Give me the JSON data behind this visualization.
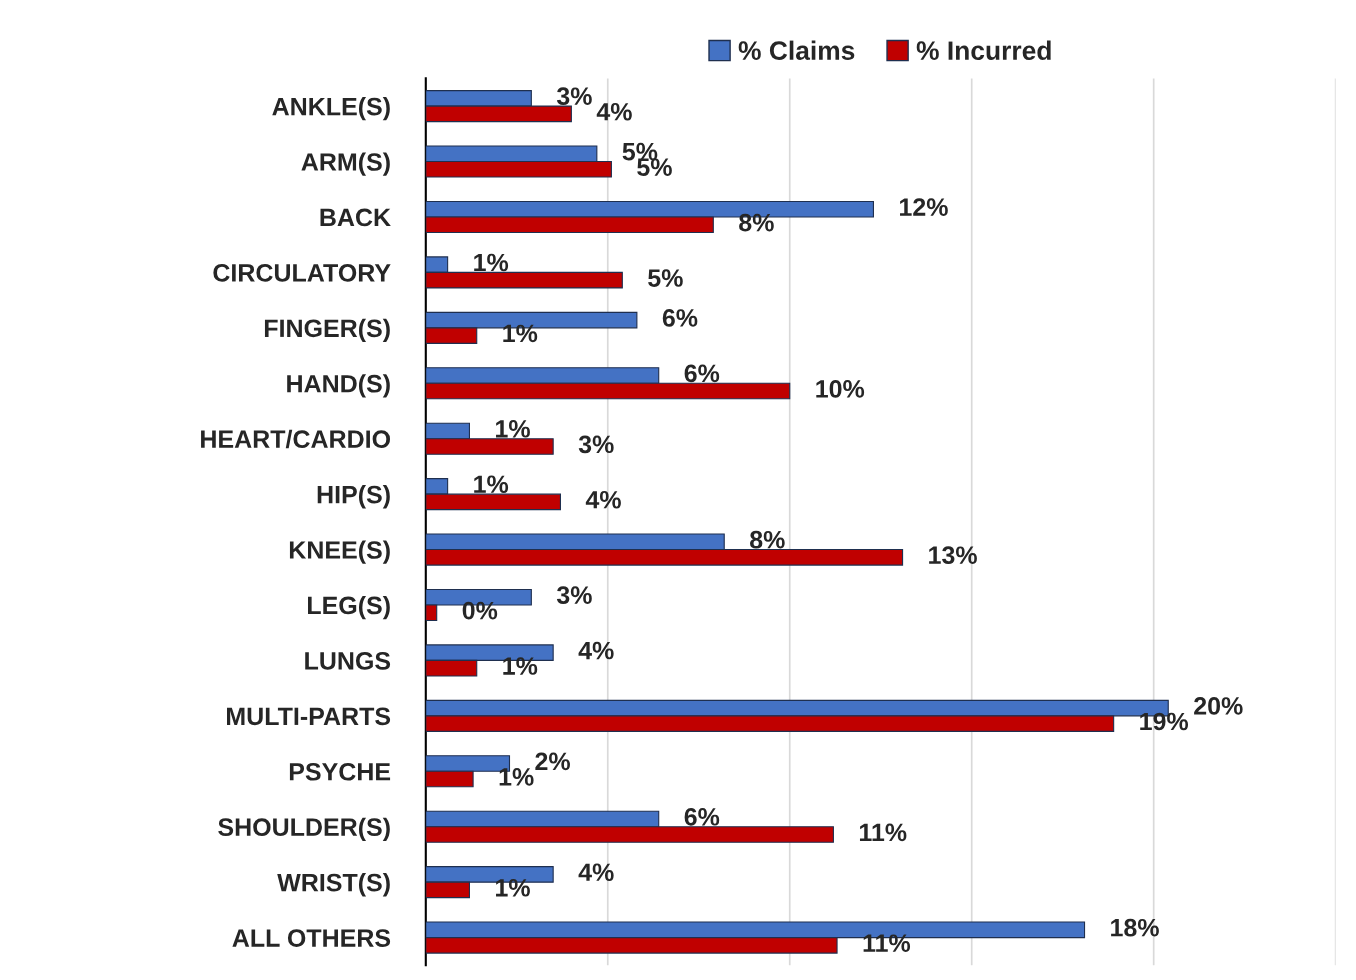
{
  "chart_data": {
    "type": "bar",
    "orientation": "horizontal",
    "categories": [
      "ANKLE(S)",
      "ARM(S)",
      "BACK",
      "CIRCULATORY",
      "FINGER(S)",
      "HAND(S)",
      "HEART/CARDIO",
      "HIP(S)",
      "KNEE(S)",
      "LEG(S)",
      "LUNGS",
      "MULTI-PARTS",
      "PSYCHE",
      "SHOULDER(S)",
      "WRIST(S)",
      "ALL OTHERS"
    ],
    "series": [
      {
        "name": "% Claims",
        "color": "#4472c4",
        "values": [
          2.9,
          4.7,
          12.3,
          0.6,
          5.8,
          6.4,
          1.2,
          0.6,
          8.2,
          2.9,
          3.5,
          20.4,
          2.3,
          6.4,
          3.5,
          18.1
        ],
        "value_labels": [
          "3%",
          "5%",
          "12%",
          "1%",
          "6%",
          "6%",
          "1%",
          "1%",
          "8%",
          "3%",
          "4%",
          "20%",
          "2%",
          "6%",
          "4%",
          "18%"
        ]
      },
      {
        "name": "% Incurred",
        "color": "#c00000",
        "values": [
          4.0,
          5.1,
          7.9,
          5.4,
          1.4,
          10.0,
          3.5,
          3.7,
          13.1,
          0.3,
          1.4,
          18.9,
          1.3,
          11.2,
          1.2,
          11.3
        ],
        "value_labels": [
          "4%",
          "5%",
          "8%",
          "5%",
          "1%",
          "10%",
          "3%",
          "4%",
          "13%",
          "0%",
          "1%",
          "19%",
          "1%",
          "11%",
          "1%",
          "11%"
        ]
      }
    ],
    "xlim": [
      0,
      25
    ],
    "xticks": [
      {
        "value": 0,
        "label": null
      },
      {
        "value": 5,
        "label": null
      },
      {
        "value": 10,
        "label": null
      },
      {
        "value": 15,
        "label": null
      },
      {
        "value": 20,
        "label": null
      },
      {
        "value": 25,
        "label": null
      }
    ],
    "tick_labels": "y",
    "grid": "x",
    "legend": "top"
  }
}
